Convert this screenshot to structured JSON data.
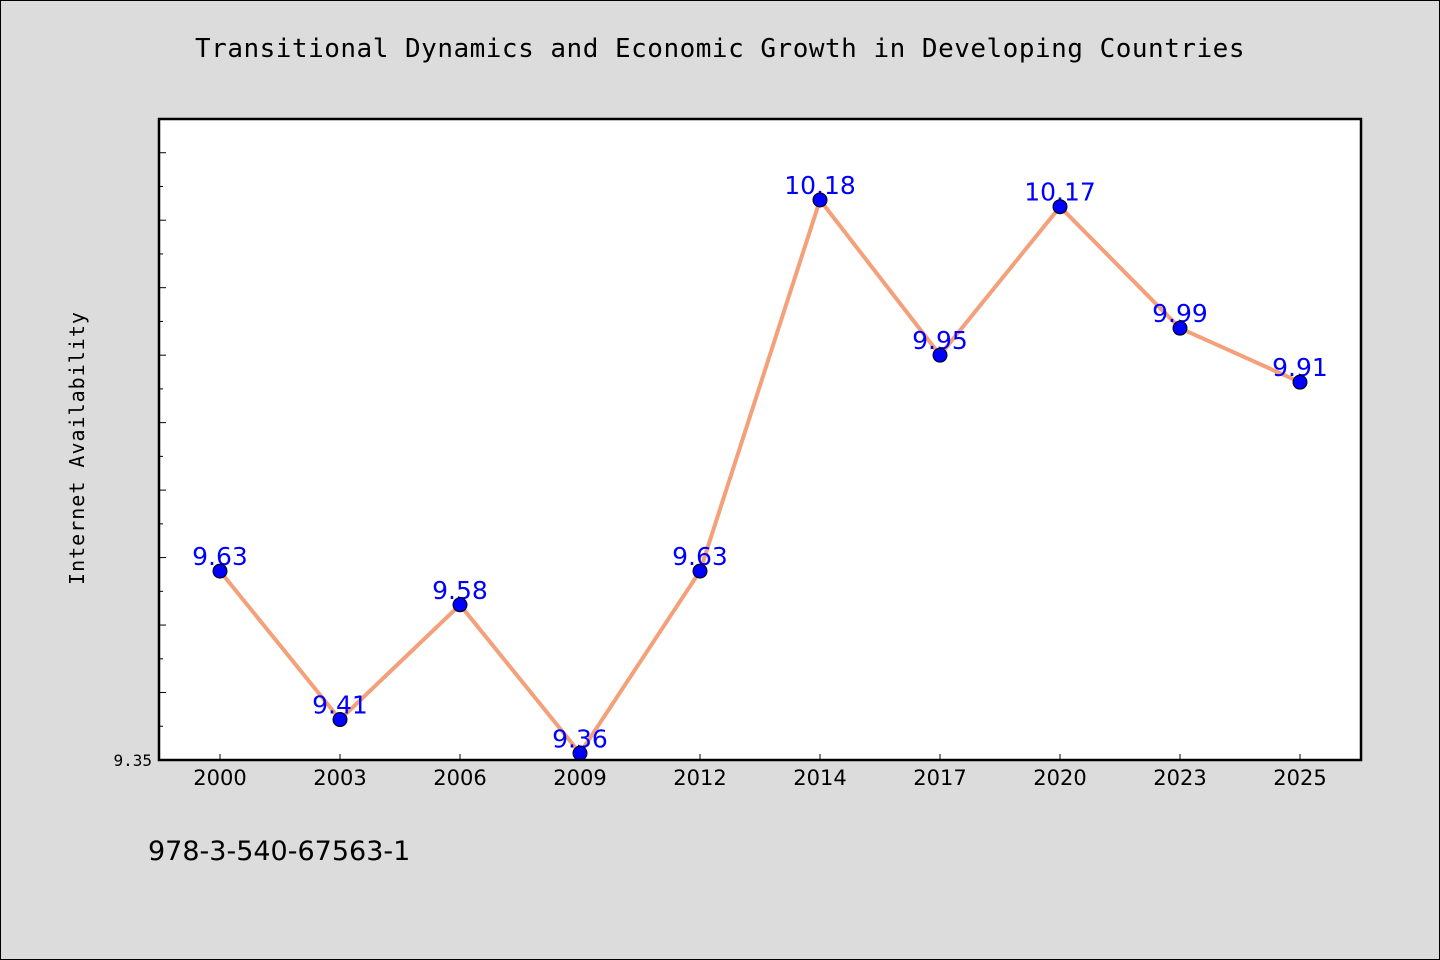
{
  "chart_data": {
    "type": "line",
    "title": "Transitional Dynamics and Economic Growth in Developing Countries",
    "xlabel": "",
    "ylabel": "Internet Availability",
    "categories": [
      "2000",
      "2003",
      "2006",
      "2009",
      "2012",
      "2014",
      "2017",
      "2020",
      "2023",
      "2025"
    ],
    "series": [
      {
        "values": [
          9.63,
          9.41,
          9.58,
          9.36,
          9.63,
          10.18,
          9.95,
          10.17,
          9.99,
          9.91
        ]
      }
    ],
    "data_labels": [
      "9.63",
      "9.41",
      "9.58",
      "9.36",
      "9.63",
      "10.18",
      "9.95",
      "10.17",
      "9.99",
      "9.91"
    ],
    "y_tick_labels": [
      "9.35"
    ],
    "ylim": [
      9.35,
      10.3
    ],
    "grid": false,
    "legend": "none",
    "colors": {
      "line": "#f4a07a",
      "marker": "#0000ff",
      "label": "#0000ff",
      "background": "#dcdcdc",
      "plot_bg": "#ffffff"
    }
  },
  "footer": {
    "code": "978-3-540-67563-1"
  }
}
